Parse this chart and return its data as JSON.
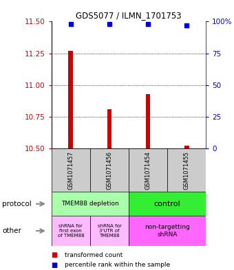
{
  "title": "GDS5077 / ILMN_1701753",
  "samples": [
    "GSM1071457",
    "GSM1071456",
    "GSM1071454",
    "GSM1071455"
  ],
  "red_values": [
    11.27,
    10.81,
    10.93,
    10.52
  ],
  "blue_values": [
    98,
    98,
    98,
    97
  ],
  "ylim_left": [
    10.5,
    11.5
  ],
  "yticks_left": [
    10.5,
    10.75,
    11.0,
    11.25,
    11.5
  ],
  "yticks_right": [
    0,
    25,
    50,
    75,
    100
  ],
  "protocol_labels": [
    "TMEM88 depletion",
    "control"
  ],
  "protocol_color_left": "#aaffaa",
  "protocol_color_right": "#33ee33",
  "other_label_left1": "shRNA for\nfirst exon\nof TMEM88",
  "other_label_left2": "shRNA for\n3'UTR of\nTMEM88",
  "other_label_right": "non-targetting\nshRNA",
  "other_color_left": "#ffbbff",
  "other_color_right": "#ff66ff",
  "legend_red": "transformed count",
  "legend_blue": "percentile rank within the sample",
  "bar_color": "#cc0000",
  "dot_color": "#0000cc",
  "label_color_left": "#cc0000",
  "label_color_right": "#0000cc",
  "bg_color": "#ffffff",
  "sample_box_color": "#cccccc",
  "arrow_color": "#888888"
}
